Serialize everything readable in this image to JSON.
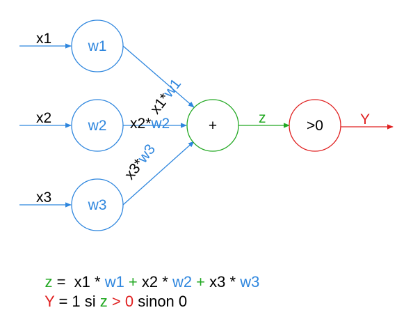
{
  "colors": {
    "blue": "#2e86de",
    "green": "#22a822",
    "red": "#e02020",
    "black": "#000000"
  },
  "inputs": {
    "x1": "x1",
    "x2": "x2",
    "x3": "x3"
  },
  "weights": {
    "w1": "w1",
    "w2": "w2",
    "w3": "w3"
  },
  "edges": {
    "e1_x": "x1",
    "e1_star": "*",
    "e1_w": "w1",
    "e2_x": "x2",
    "e2_star": "*",
    "e2_w": "w2",
    "e3_x": "x3",
    "e3_star": "*",
    "e3_w": "w3"
  },
  "sum": {
    "label": "+",
    "output": "z"
  },
  "activation": {
    "label": ">0",
    "output": "Y"
  },
  "formula1": {
    "z": "z",
    "eq": " =  ",
    "x1": "x1",
    "mul1": " * ",
    "w1": "w1",
    "plus1": " + ",
    "x2": "x2",
    "mul2": " * ",
    "w2": "w2",
    "plus2": " + ",
    "x3": "x3",
    "mul3": " * ",
    "w3": "w3"
  },
  "formula2": {
    "Y": "Y",
    "eq": " = 1 si ",
    "z": "z",
    "gt": " > 0",
    "rest": " sinon 0"
  }
}
